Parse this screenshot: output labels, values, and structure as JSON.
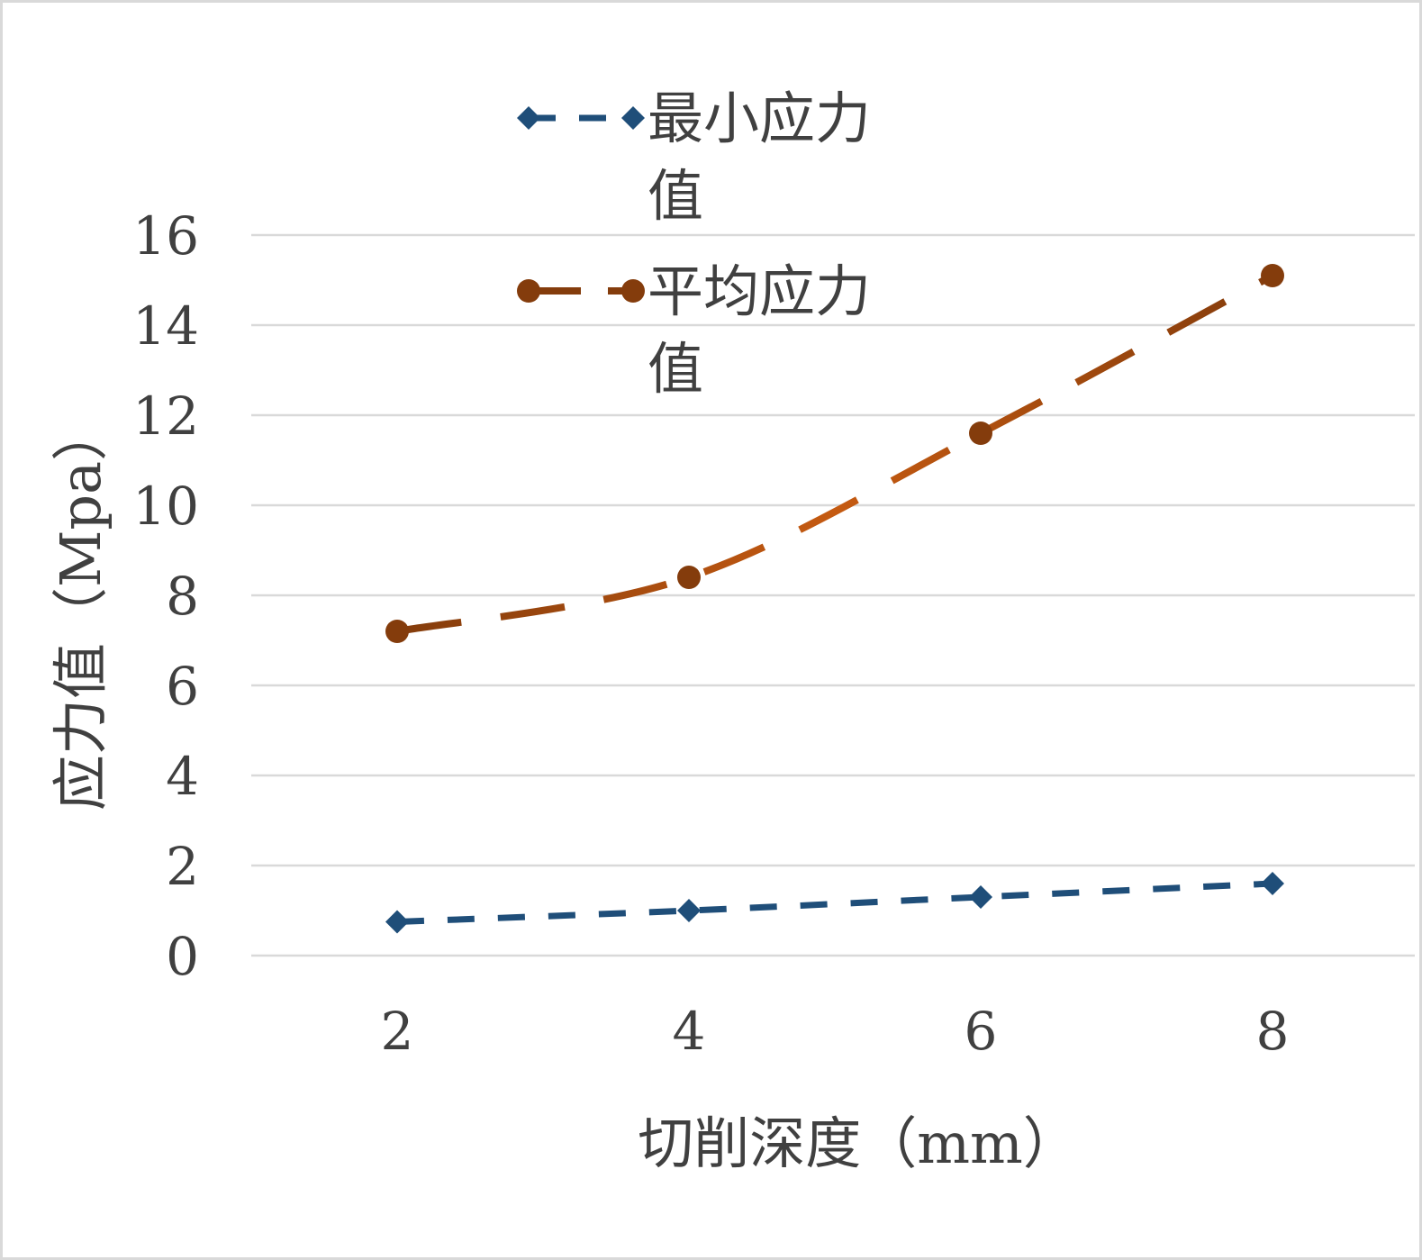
{
  "chart_data": {
    "type": "line",
    "title": "",
    "xlabel": "切削深度（mm）",
    "ylabel": "应力值（Mpa）",
    "categories": [
      "2",
      "4",
      "6",
      "8"
    ],
    "x": [
      2,
      4,
      6,
      8
    ],
    "ylim": [
      0,
      16
    ],
    "yticks": [
      "0",
      "2",
      "4",
      "6",
      "8",
      "10",
      "12",
      "14",
      "16"
    ],
    "grid": true,
    "legend_position": "top",
    "series": [
      {
        "name": "最小应力值",
        "values": [
          0.75,
          1.0,
          1.3,
          1.6
        ],
        "color": "#1f4e79",
        "marker": "diamond",
        "line_style": "dashed"
      },
      {
        "name": "平均应力值",
        "values": [
          7.2,
          8.4,
          11.6,
          15.1
        ],
        "color": "#843c0c",
        "marker": "circle",
        "line_style": "long-dash"
      }
    ]
  }
}
